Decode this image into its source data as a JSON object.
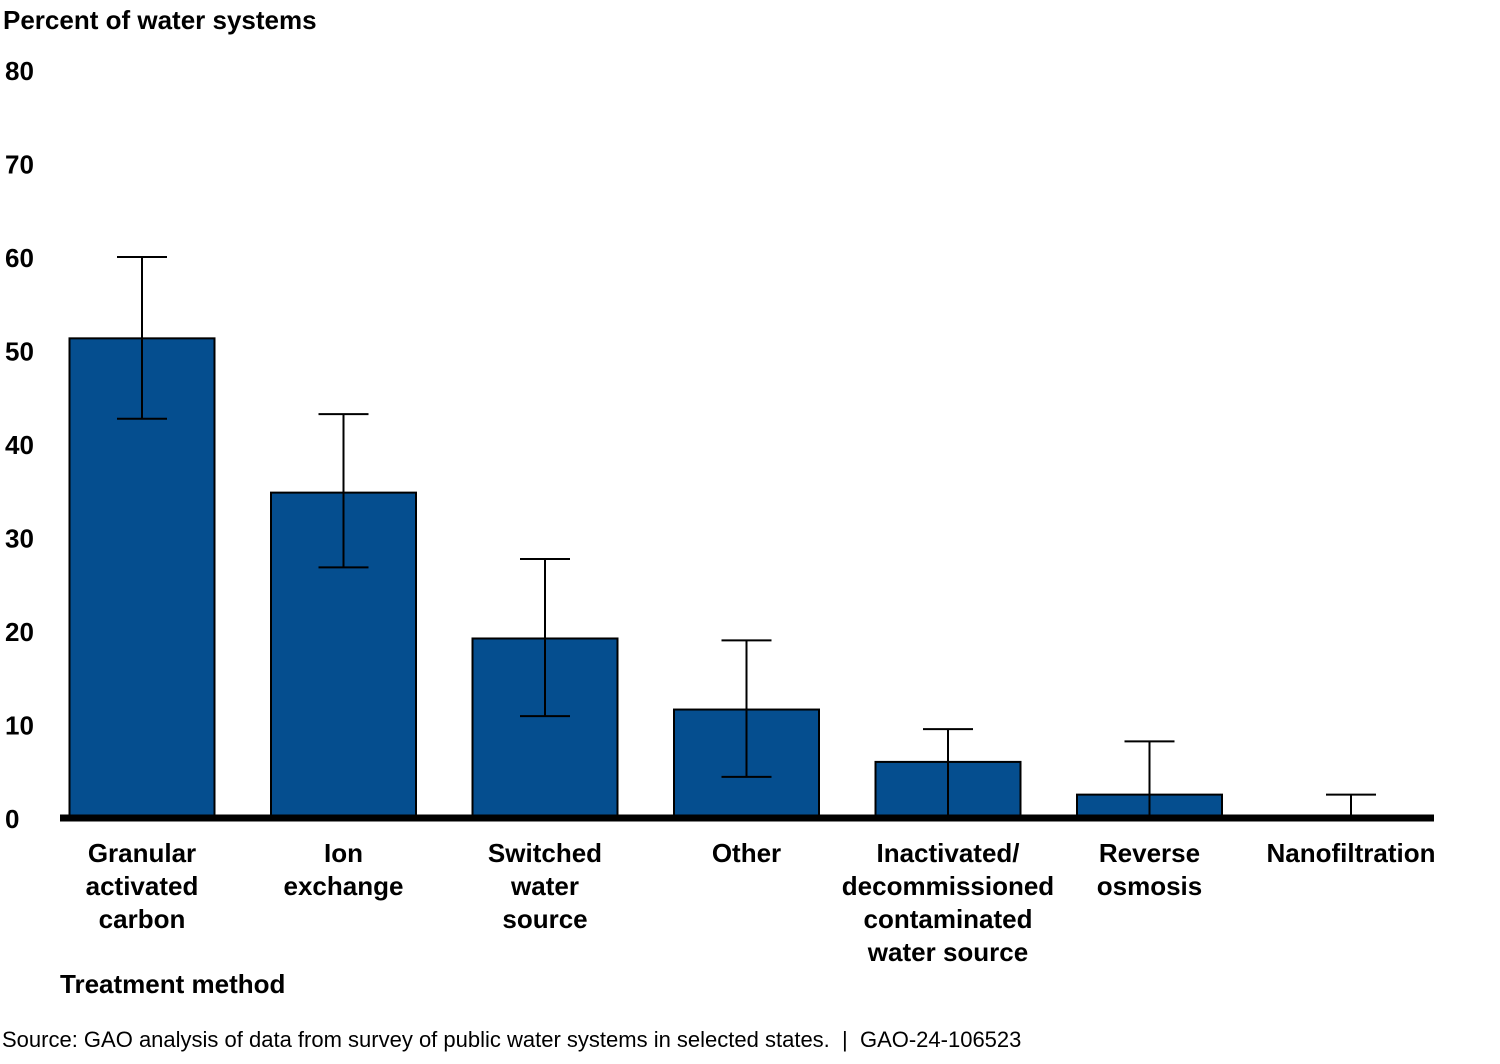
{
  "chart_data": {
    "type": "bar",
    "ylabel": "Percent of water systems",
    "xlabel": "Treatment method",
    "ylim": [
      0,
      80
    ],
    "yticks": [
      0,
      10,
      20,
      30,
      40,
      50,
      60,
      70,
      80
    ],
    "grid": false,
    "categories": [
      [
        "Granular",
        "activated",
        "carbon"
      ],
      [
        "Ion",
        "exchange"
      ],
      [
        "Switched",
        "water",
        "source"
      ],
      [
        "Other"
      ],
      [
        "Inactivated/",
        "decommissioned",
        "contaminated",
        "water source"
      ],
      [
        "Reverse",
        "osmosis"
      ],
      [
        "Nanofiltration"
      ]
    ],
    "values": [
      51.3,
      34.8,
      19.2,
      11.6,
      6.0,
      2.5,
      0
    ],
    "error_low": [
      42.7,
      26.8,
      10.9,
      4.4,
      0,
      0,
      0
    ],
    "error_high": [
      60.0,
      43.2,
      27.7,
      19.0,
      9.5,
      8.2,
      2.5
    ],
    "bar_color": "#054e8f",
    "source": "Source: GAO analysis of data from survey of public water systems in selected states.  |  GAO-24-106523"
  }
}
